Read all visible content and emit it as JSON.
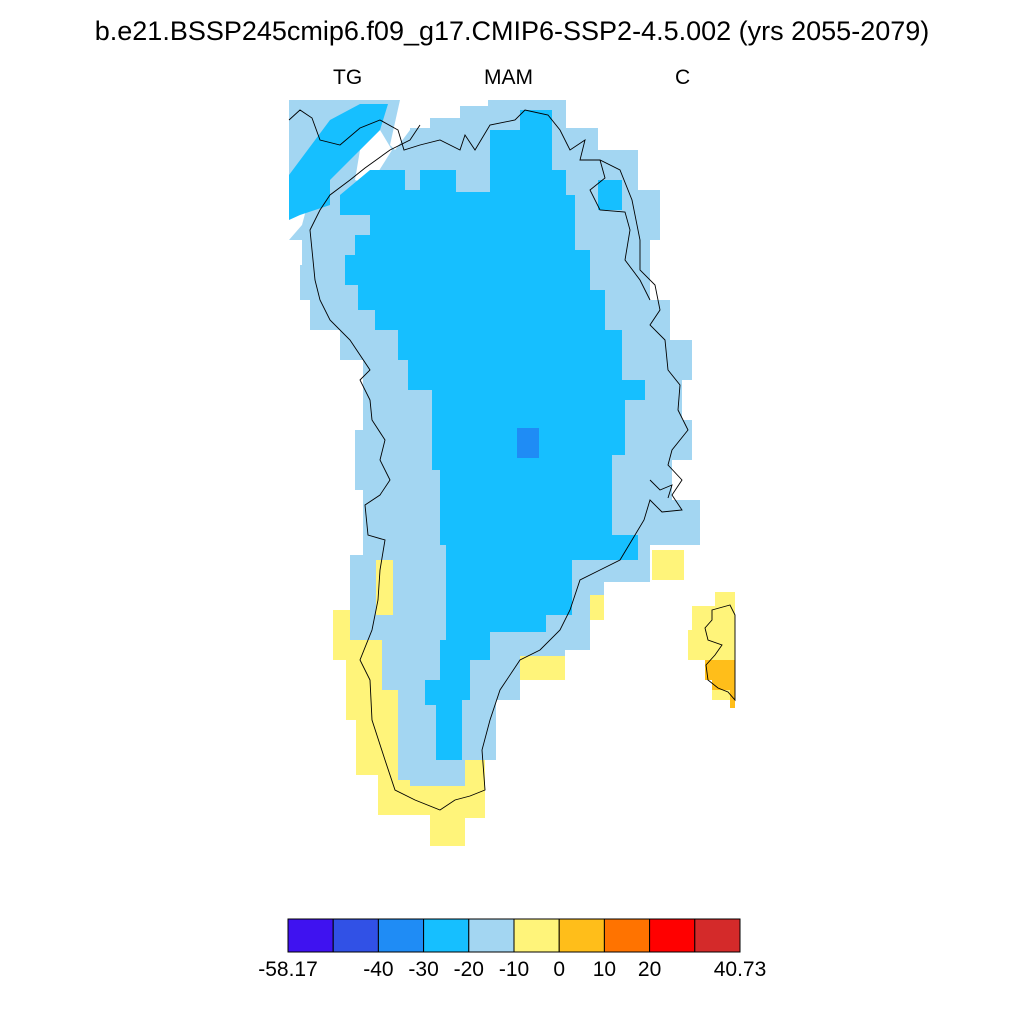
{
  "title": "b.e21.BSSP245cmip6.f09_g17.CMIP6-SSP2-4.5.002 (yrs 2055-2079)",
  "subtitles": {
    "left": "TG",
    "center": "MAM",
    "right": "C"
  },
  "colorbar": {
    "colors": [
      "#3f12f0",
      "#3151e6",
      "#1f8cf5",
      "#16bfff",
      "#a3d6f2",
      "#fff47a",
      "#ffbe1a",
      "#ff7300",
      "#ff0000",
      "#d42a2a"
    ],
    "tick_labels": [
      "-58.17",
      "-40",
      "-30",
      "-20",
      "-10",
      "0",
      "10",
      "20",
      "40.73"
    ]
  },
  "map_colors": {
    "ocean_light_blue": "#a3d6f2",
    "interior_blue": "#16bfff",
    "summit_blue": "#1f8cf5",
    "coastal_yellow": "#fff47a",
    "coastal_orange": "#ffbe1a"
  }
}
